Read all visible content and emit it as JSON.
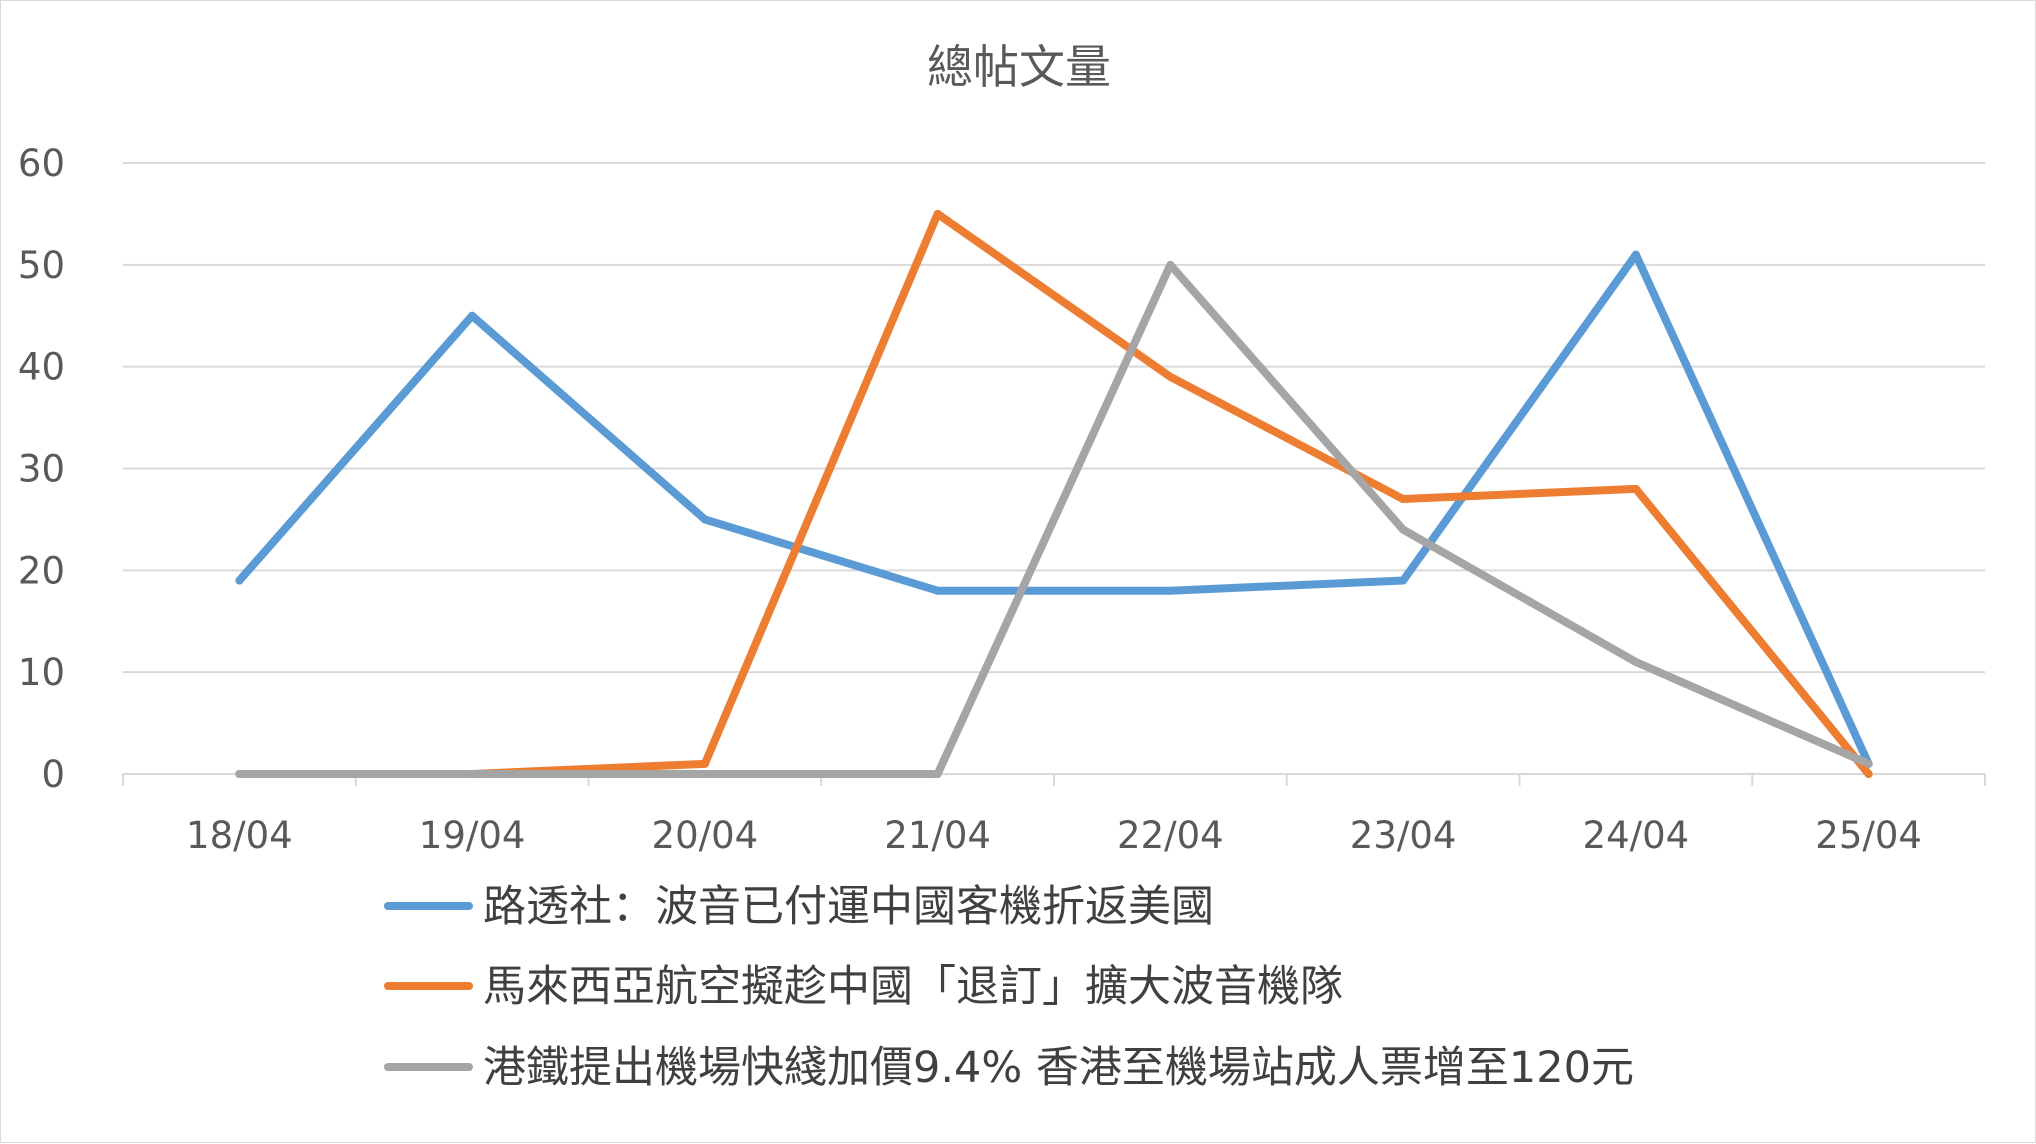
{
  "chart_data": {
    "type": "line",
    "title": "總帖文量",
    "xlabel": "",
    "ylabel": "",
    "categories": [
      "18/04",
      "19/04",
      "20/04",
      "21/04",
      "22/04",
      "23/04",
      "24/04",
      "25/04"
    ],
    "ylim": [
      0,
      60
    ],
    "yticks": [
      0,
      10,
      20,
      30,
      40,
      50,
      60
    ],
    "grid": true,
    "legend_position": "bottom",
    "series": [
      {
        "name": "路透社：波音已付運中國客機折返美國",
        "color": "#5b9bd5",
        "values": [
          19,
          45,
          25,
          18,
          18,
          19,
          51,
          1
        ]
      },
      {
        "name": "馬來西亞航空擬趁中國「退訂」擴大波音機隊",
        "color": "#ed7d31",
        "values": [
          0,
          0,
          1,
          55,
          39,
          27,
          28,
          0
        ]
      },
      {
        "name": "港鐵提出機場快綫加價9.4% 香港至機場站成人票增至120元",
        "color": "#a5a5a5",
        "values": [
          0,
          0,
          0,
          0,
          50,
          24,
          11,
          1
        ]
      }
    ]
  }
}
